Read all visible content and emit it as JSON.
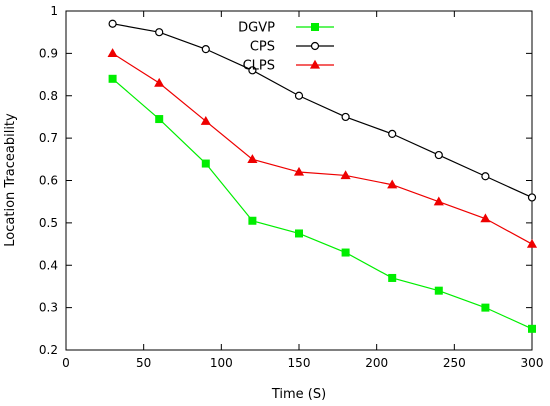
{
  "chart_data": {
    "type": "line",
    "title": "",
    "xlabel": "Time (S)",
    "ylabel": "Location Traceability",
    "xlim": [
      0,
      300
    ],
    "ylim": [
      0.2,
      1.0
    ],
    "xticks": [
      0,
      50,
      100,
      150,
      200,
      250,
      300
    ],
    "yticks": [
      0.2,
      0.3,
      0.4,
      0.5,
      0.6,
      0.7,
      0.8,
      0.9,
      1.0
    ],
    "xtick_labels": [
      "0",
      "50",
      "100",
      "150",
      "200",
      "250",
      "300"
    ],
    "ytick_labels": [
      "0.2",
      "0.3",
      "0.4",
      "0.5",
      "0.6",
      "0.7",
      "0.8",
      "0.9",
      "1"
    ],
    "grid": false,
    "legend_position": "top-center",
    "x": [
      30,
      60,
      90,
      120,
      150,
      180,
      210,
      240,
      270,
      300
    ],
    "series": [
      {
        "name": "DGVP",
        "color": "#00ee00",
        "marker": "square",
        "values": [
          0.84,
          0.745,
          0.64,
          0.505,
          0.475,
          0.43,
          0.37,
          0.34,
          0.3,
          0.25
        ]
      },
      {
        "name": "CPS",
        "color": "#000000",
        "marker": "circle-open",
        "values": [
          0.97,
          0.95,
          0.91,
          0.86,
          0.8,
          0.75,
          0.71,
          0.66,
          0.61,
          0.56
        ]
      },
      {
        "name": "CLPS",
        "color": "#ee0000",
        "marker": "triangle",
        "values": [
          0.9,
          0.83,
          0.74,
          0.65,
          0.62,
          0.612,
          0.59,
          0.55,
          0.51,
          0.45
        ]
      }
    ]
  }
}
